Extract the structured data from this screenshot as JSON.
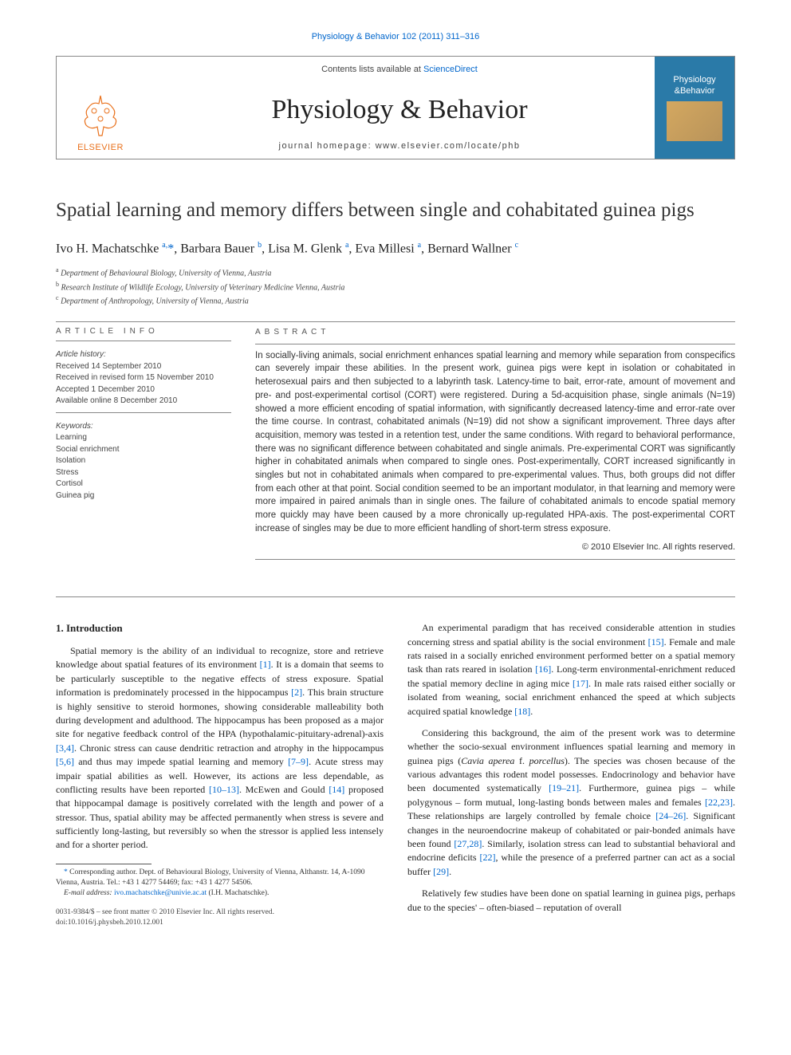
{
  "top_link": "Physiology & Behavior 102 (2011) 311–316",
  "header": {
    "publisher": "ELSEVIER",
    "contents_prefix": "Contents lists available at ",
    "contents_link": "ScienceDirect",
    "journal_title": "Physiology & Behavior",
    "homepage_label": "journal homepage: www.elsevier.com/locate/phb",
    "cover_line1": "Physiology",
    "cover_line2": "Behavior"
  },
  "article": {
    "title": "Spatial learning and memory differs between single and cohabitated guinea pigs",
    "authors_html": "Ivo H. Machatschke <sup>a,</sup><span class='star'>*</span>, Barbara Bauer <sup>b</sup>, Lisa M. Glenk <sup>a</sup>, Eva Millesi <sup>a</sup>, Bernard Wallner <sup>c</sup>",
    "affiliations": {
      "a": "Department of Behavioural Biology, University of Vienna, Austria",
      "b": "Research Institute of Wildlife Ecology, University of Veterinary Medicine Vienna, Austria",
      "c": "Department of Anthropology, University of Vienna, Austria"
    }
  },
  "info": {
    "heading": "article info",
    "history_label": "Article history:",
    "received": "Received 14 September 2010",
    "revised": "Received in revised form 15 November 2010",
    "accepted": "Accepted 1 December 2010",
    "online": "Available online 8 December 2010",
    "keywords_label": "Keywords:",
    "keywords": [
      "Learning",
      "Social enrichment",
      "Isolation",
      "Stress",
      "Cortisol",
      "Guinea pig"
    ]
  },
  "abstract": {
    "heading": "abstract",
    "text": "In socially-living animals, social enrichment enhances spatial learning and memory while separation from conspecifics can severely impair these abilities. In the present work, guinea pigs were kept in isolation or cohabitated in heterosexual pairs and then subjected to a labyrinth task. Latency-time to bait, error-rate, amount of movement and pre- and post-experimental cortisol (CORT) were registered. During a 5d-acquisition phase, single animals (N=19) showed a more efficient encoding of spatial information, with significantly decreased latency-time and error-rate over the time course. In contrast, cohabitated animals (N=19) did not show a significant improvement. Three days after acquisition, memory was tested in a retention test, under the same conditions. With regard to behavioral performance, there was no significant difference between cohabitated and single animals. Pre-experimental CORT was significantly higher in cohabitated animals when compared to single ones. Post-experimentally, CORT increased significantly in singles but not in cohabitated animals when compared to pre-experimental values. Thus, both groups did not differ from each other at that point. Social condition seemed to be an important modulator, in that learning and memory were more impaired in paired animals than in single ones. The failure of cohabitated animals to encode spatial memory more quickly may have been caused by a more chronically up-regulated HPA-axis. The post-experimental CORT increase of singles may be due to more efficient handling of short-term stress exposure.",
    "copyright": "© 2010 Elsevier Inc. All rights reserved."
  },
  "body": {
    "section1_heading": "1. Introduction",
    "p1_a": "Spatial memory is the ability of an individual to recognize, store and retrieve knowledge about spatial features of its environment ",
    "p1_b": ". It is a domain that seems to be particularly susceptible to the negative effects of stress exposure. Spatial information is predominately processed in the hippocampus ",
    "p1_c": ". This brain structure is highly sensitive to steroid hormones, showing considerable malleability both during development and adulthood. The hippocampus has been proposed as a major site for negative feedback control of the HPA (hypothalamic-pituitary-adrenal)-axis ",
    "p1_d": ". Chronic stress can cause dendritic retraction and atrophy in the hippocampus ",
    "p1_e": " and thus may impede spatial learning and memory ",
    "p1_f": ". Acute stress may impair spatial abilities as well. However, its actions are less dependable, as conflicting results have been reported ",
    "p1_g": ". McEwen and Gould ",
    "p1_h": " proposed that hippocampal damage is positively correlated with the length and power of a stressor. Thus, spatial ability may be affected permanently when stress is severe and sufficiently long-lasting, but reversibly so when the stressor is applied less intensely and for a shorter period.",
    "p2_a": "An experimental paradigm that has received considerable attention in studies concerning stress and spatial ability is the social environment ",
    "p2_b": ". Female and male rats raised in a socially enriched environment performed better on a spatial memory task than rats reared in isolation ",
    "p2_c": ". Long-term environmental-enrichment reduced the spatial memory decline in aging mice ",
    "p2_d": ". In male rats raised either socially or isolated from weaning, social enrichment enhanced the speed at which subjects acquired spatial knowledge ",
    "p2_e": ".",
    "p3_a": "Considering this background, the aim of the present work was to determine whether the socio-sexual environment influences spatial learning and memory in guinea pigs (",
    "p3_species": "Cavia aperea ",
    "p3_f": "f. ",
    "p3_species2": "porcellus",
    "p3_b": "). The species was chosen because of the various advantages this rodent model possesses. Endocrinology and behavior have been documented systematically ",
    "p3_c": ". Furthermore, guinea pigs – while polygynous – form mutual, long-lasting bonds between males and females ",
    "p3_d": ". These relationships are largely controlled by female choice ",
    "p3_e": ". Significant changes in the neuroendocrine makeup of cohabitated or pair-bonded animals have been found ",
    "p3_g": ". Similarly, isolation stress can lead to substantial behavioral and endocrine deficits ",
    "p3_h": ", while the presence of a preferred partner can act as a social buffer ",
    "p3_i": ".",
    "p4": "Relatively few studies have been done on spatial learning in guinea pigs, perhaps due to the species' – often-biased – reputation of overall",
    "refs": {
      "r1": "[1]",
      "r2": "[2]",
      "r34": "[3,4]",
      "r56": "[5,6]",
      "r79": "[7–9]",
      "r1013": "[10–13]",
      "r14": "[14]",
      "r15": "[15]",
      "r16": "[16]",
      "r17": "[17]",
      "r18": "[18]",
      "r1921": "[19–21]",
      "r2223": "[22,23]",
      "r2426": "[24–26]",
      "r2728": "[27,28]",
      "r22": "[22]",
      "r29": "[29]"
    }
  },
  "footnote": {
    "star": "*",
    "text": " Corresponding author. Dept. of Behavioural Biology, University of Vienna, Althanstr. 14, A-1090 Vienna, Austria. Tel.: +43 1 4277 54469; fax: +43 1 4277 54506.",
    "email_label": "E-mail address: ",
    "email": "ivo.machatschke@univie.ac.at",
    "email_suffix": " (I.H. Machatschke)."
  },
  "footer": {
    "issn": "0031-9384/$ – see front matter © 2010 Elsevier Inc. All rights reserved.",
    "doi": "doi:10.1016/j.physbeh.2010.12.001"
  },
  "colors": {
    "link": "#0066cc",
    "publisher": "#e9711c",
    "cover_bg": "#2a7aa8",
    "text": "#222222",
    "rule": "#888888"
  }
}
